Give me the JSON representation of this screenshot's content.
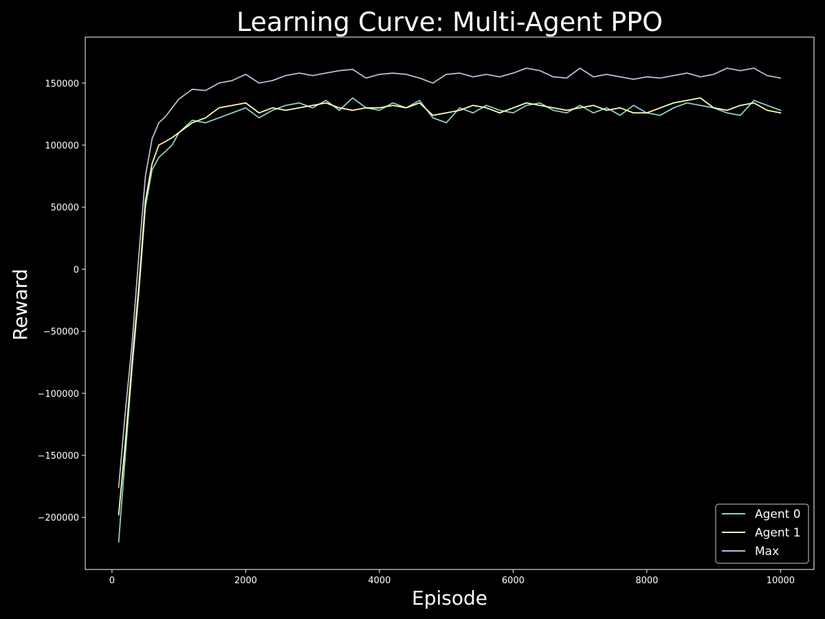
{
  "chart_data": {
    "type": "line",
    "title": "Learning Curve: Multi-Agent PPO",
    "xlabel": "Episode",
    "ylabel": "Reward",
    "xlim": [
      -400,
      10500
    ],
    "ylim": [
      -242000,
      187000
    ],
    "x_ticks": [
      0,
      2000,
      4000,
      6000,
      8000,
      10000
    ],
    "y_ticks": [
      -200000,
      -150000,
      -100000,
      -50000,
      0,
      50000,
      100000,
      150000
    ],
    "x_tick_labels": [
      "0",
      "2000",
      "4000",
      "6000",
      "8000",
      "10000"
    ],
    "y_tick_labels": [
      "−200000",
      "−150000",
      "−100000",
      "−50000",
      "0",
      "50000",
      "100000",
      "150000"
    ],
    "grid": false,
    "legend_position": "lower-right",
    "background": "#000000",
    "series": [
      {
        "name": "Agent 0",
        "color": "#8dd3c7",
        "x": [
          100,
          200,
          300,
          400,
          500,
          600,
          700,
          800,
          900,
          1000,
          1200,
          1400,
          1600,
          1800,
          2000,
          2200,
          2400,
          2600,
          2800,
          3000,
          3200,
          3400,
          3600,
          3800,
          4000,
          4200,
          4400,
          4600,
          4800,
          5000,
          5200,
          5400,
          5600,
          5800,
          6000,
          6200,
          6400,
          6600,
          6800,
          7000,
          7200,
          7400,
          7600,
          7800,
          8000,
          8200,
          8400,
          8600,
          8800,
          9000,
          9200,
          9400,
          9600,
          9800,
          10000
        ],
        "y": [
          -220000,
          -150000,
          -80000,
          -20000,
          50000,
          80000,
          90000,
          95000,
          100000,
          110000,
          120000,
          118000,
          122000,
          126000,
          130000,
          122000,
          128000,
          132000,
          134000,
          130000,
          136000,
          128000,
          138000,
          130000,
          128000,
          134000,
          130000,
          136000,
          122000,
          118000,
          130000,
          126000,
          132000,
          128000,
          126000,
          132000,
          134000,
          128000,
          126000,
          132000,
          126000,
          130000,
          124000,
          132000,
          126000,
          124000,
          130000,
          134000,
          132000,
          130000,
          126000,
          124000,
          136000,
          132000,
          128000
        ]
      },
      {
        "name": "Agent 1",
        "color": "#ffffb3",
        "x": [
          100,
          200,
          300,
          400,
          500,
          600,
          700,
          800,
          900,
          1000,
          1200,
          1400,
          1600,
          1800,
          2000,
          2200,
          2400,
          2600,
          2800,
          3000,
          3200,
          3400,
          3600,
          3800,
          4000,
          4200,
          4400,
          4600,
          4800,
          5000,
          5200,
          5400,
          5600,
          5800,
          6000,
          6200,
          6400,
          6600,
          6800,
          7000,
          7200,
          7400,
          7600,
          7800,
          8000,
          8200,
          8400,
          8600,
          8800,
          9000,
          9200,
          9400,
          9600,
          9800,
          10000
        ],
        "y": [
          -198000,
          -140000,
          -75000,
          -15000,
          55000,
          85000,
          100000,
          103000,
          106000,
          110000,
          118000,
          122000,
          130000,
          132000,
          134000,
          126000,
          130000,
          128000,
          130000,
          132000,
          134000,
          130000,
          128000,
          130000,
          130000,
          132000,
          130000,
          134000,
          124000,
          126000,
          128000,
          132000,
          130000,
          126000,
          130000,
          134000,
          132000,
          130000,
          128000,
          130000,
          132000,
          128000,
          130000,
          126000,
          126000,
          130000,
          134000,
          136000,
          138000,
          130000,
          128000,
          132000,
          134000,
          128000,
          126000
        ]
      },
      {
        "name": "Max",
        "color": "#bebada",
        "x": [
          100,
          200,
          300,
          400,
          500,
          600,
          700,
          800,
          900,
          1000,
          1200,
          1400,
          1600,
          1800,
          2000,
          2200,
          2400,
          2600,
          2800,
          3000,
          3200,
          3400,
          3600,
          3800,
          4000,
          4200,
          4400,
          4600,
          4800,
          5000,
          5200,
          5400,
          5600,
          5800,
          6000,
          6200,
          6400,
          6600,
          6800,
          7000,
          7200,
          7400,
          7600,
          7800,
          8000,
          8200,
          8400,
          8600,
          8800,
          9000,
          9200,
          9400,
          9600,
          9800,
          10000
        ],
        "y": [
          -176000,
          -115000,
          -60000,
          10000,
          75000,
          105000,
          118000,
          123000,
          130000,
          137000,
          145000,
          144000,
          150000,
          152000,
          157000,
          150000,
          152000,
          156000,
          158000,
          156000,
          158000,
          160000,
          161000,
          154000,
          157000,
          158000,
          157000,
          154000,
          150000,
          157000,
          158000,
          155000,
          157000,
          155000,
          158000,
          162000,
          160000,
          155000,
          154000,
          162000,
          155000,
          157000,
          155000,
          153000,
          155000,
          154000,
          156000,
          158000,
          155000,
          157000,
          162000,
          160000,
          162000,
          156000,
          154000
        ]
      }
    ]
  }
}
